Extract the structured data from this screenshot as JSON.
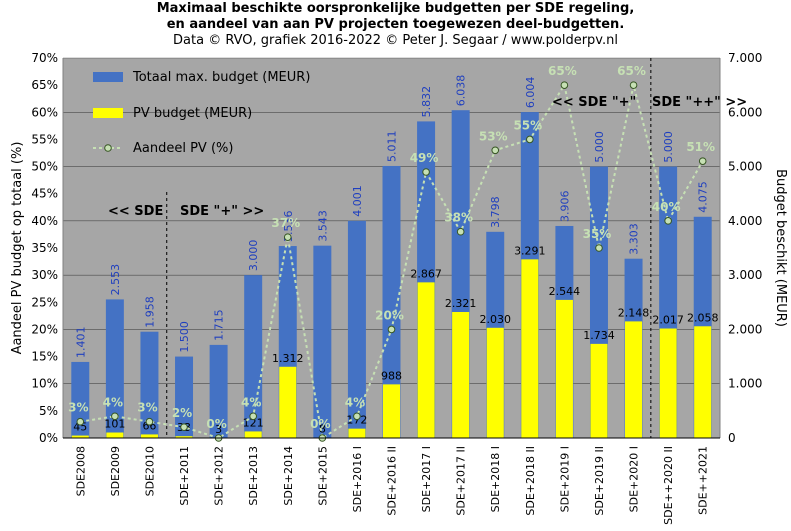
{
  "chart_data": {
    "type": "bar",
    "title_lines": [
      "Maximaal beschikte oorspronkelijke  budgetten per SDE regeling,",
      "en aandeel van aan PV projecten toegewezen deel-budgetten.",
      "Data © RVO, grafiek 2016-2022 © Peter J. Segaar / www.polderpv.nl"
    ],
    "ylabel_left": "Aandeel PV budget op totaal (%)",
    "ylabel_right": "Budget beschikt (MEUR)",
    "y_left_ticks": [
      "0%",
      "5%",
      "10%",
      "15%",
      "20%",
      "25%",
      "30%",
      "35%",
      "40%",
      "45%",
      "50%",
      "55%",
      "60%",
      "65%",
      "70%"
    ],
    "y_right_ticks": [
      "0",
      "1.000",
      "2.000",
      "3.000",
      "4.000",
      "5.000",
      "6.000",
      "7.000"
    ],
    "y_left_range": [
      0,
      70
    ],
    "y_right_range": [
      0,
      7000
    ],
    "categories": [
      "SDE2008",
      "SDE2009",
      "SDE2010",
      "SDE+2011",
      "SDE+2012",
      "SDE+2013",
      "SDE+2014",
      "SDE+2015",
      "SDE+2016 I",
      "SDE+2016 II",
      "SDE+2017 I",
      "SDE+2017 II",
      "SDE+2018 I",
      "SDE+2018 II",
      "SDE+2019 I",
      "SDE+2019 II",
      "SDE+2020 I",
      "SDE++2020 II",
      "SDE++2021"
    ],
    "series": [
      {
        "name": "Totaal max. budget (MEUR)",
        "axis": "right",
        "color": "#4472c4",
        "values": [
          1401,
          2553,
          1958,
          1500,
          1715,
          3000,
          3536,
          3543,
          4001,
          5011,
          5832,
          6038,
          3798,
          6004,
          3906,
          5000,
          3303,
          5000,
          4075
        ],
        "labels": [
          "1.401",
          "2.553",
          "1.958",
          "1.500",
          "1.715",
          "3.000",
          "3.536",
          "3.543",
          "4.001",
          "5.011",
          "5.832",
          "6.038",
          "3.798",
          "6.004",
          "3.906",
          "5.000",
          "3.303",
          "5.000",
          "4.075"
        ]
      },
      {
        "name": "PV budget (MEUR)",
        "axis": "right",
        "color": "#ffff00",
        "values": [
          45,
          101,
          66,
          33,
          3,
          121,
          1312,
          8,
          172,
          988,
          2867,
          2321,
          2030,
          3291,
          2544,
          1734,
          2148,
          2017,
          2058
        ],
        "labels": [
          "45",
          "101",
          "66",
          "33",
          "3",
          "121",
          "1.312",
          "8",
          "172",
          "988",
          "2.867",
          "2.321",
          "2.030",
          "3.291",
          "2.544",
          "1.734",
          "2.148",
          "2.017",
          "2.058"
        ]
      },
      {
        "name": "Aandeel PV (%)",
        "axis": "left",
        "type": "line",
        "color": "#c6e0b4",
        "values": [
          3,
          4,
          3,
          2,
          0,
          4,
          37,
          0,
          4,
          20,
          49,
          38,
          53,
          55,
          65,
          35,
          65,
          40,
          51
        ],
        "labels": [
          "3%",
          "4%",
          "3%",
          "2%",
          "0%",
          "4%",
          "37%",
          "0%",
          "4%",
          "20%",
          "49%",
          "38%",
          "53%",
          "55%",
          "65%",
          "35%",
          "65%",
          "40%",
          "51%"
        ]
      }
    ],
    "annotations": {
      "sde_left": "<< SDE",
      "sde_plus_1": "SDE \"+\" >>",
      "sde_plus_2": "<< SDE \"+\"",
      "sde_plusplus": "SDE \"++\" >>"
    },
    "plot_background": "#a6a6a6",
    "legend_position": "top-left"
  }
}
